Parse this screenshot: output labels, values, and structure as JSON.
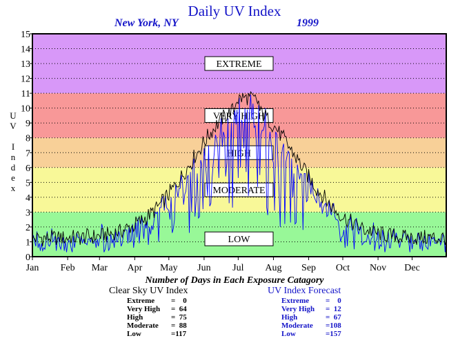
{
  "header": {
    "title": "Daily UV Index",
    "location": "New York, NY",
    "year": "1999"
  },
  "y_axis_label": [
    "U",
    "V",
    " ",
    "I",
    "n",
    "d",
    "e",
    "x"
  ],
  "bands": [
    {
      "label": "LOW",
      "from": 0,
      "to": 3,
      "color": "#98f898"
    },
    {
      "label": "MODERATE",
      "from": 3,
      "to": 6,
      "color": "#f8f898"
    },
    {
      "label": "HIGH",
      "from": 6,
      "to": 8,
      "color": "#f8d098"
    },
    {
      "label": "VERY HIGH",
      "from": 8,
      "to": 11,
      "color": "#f89898"
    },
    {
      "label": "EXTREME",
      "from": 11,
      "to": 15,
      "color": "#d898f8"
    }
  ],
  "chart_data": {
    "type": "line",
    "title": "Daily UV Index",
    "subtitle": "New York, NY 1999",
    "ylabel": "UV Index",
    "ylim": [
      0,
      15
    ],
    "yticks": [
      0,
      1,
      2,
      3,
      4,
      5,
      6,
      7,
      8,
      9,
      10,
      11,
      12,
      13,
      14,
      15
    ],
    "xlim": [
      1,
      365
    ],
    "month_labels": [
      "Jan",
      "Feb",
      "Mar",
      "Apr",
      "May",
      "Jun",
      "Jul",
      "Aug",
      "Sep",
      "Oct",
      "Nov",
      "Dec"
    ],
    "grid": true,
    "series": [
      {
        "name": "Clear Sky UV Index",
        "color": "#000000",
        "x": [],
        "y": []
      },
      {
        "name": "UV Index Forecast",
        "color": "#0000ff",
        "x": [],
        "y": []
      }
    ]
  },
  "counts": {
    "title": "Number of Days in Each Exposure Catagory",
    "clear_sky": {
      "label": "Clear Sky UV Index",
      "rows": [
        {
          "k": "Extreme",
          "v": "=    0"
        },
        {
          "k": "Very High",
          "v": "=  64"
        },
        {
          "k": "High",
          "v": "=  75"
        },
        {
          "k": "Moderate",
          "v": "=  88"
        },
        {
          "k": "Low",
          "v": "=117"
        }
      ]
    },
    "forecast": {
      "label": "UV Index Forecast",
      "rows": [
        {
          "k": "Extreme",
          "v": "=    0"
        },
        {
          "k": "Very High",
          "v": "=  12"
        },
        {
          "k": "High",
          "v": "=  67"
        },
        {
          "k": "Moderate",
          "v": "=108"
        },
        {
          "k": "Low",
          "v": "=157"
        }
      ]
    }
  }
}
